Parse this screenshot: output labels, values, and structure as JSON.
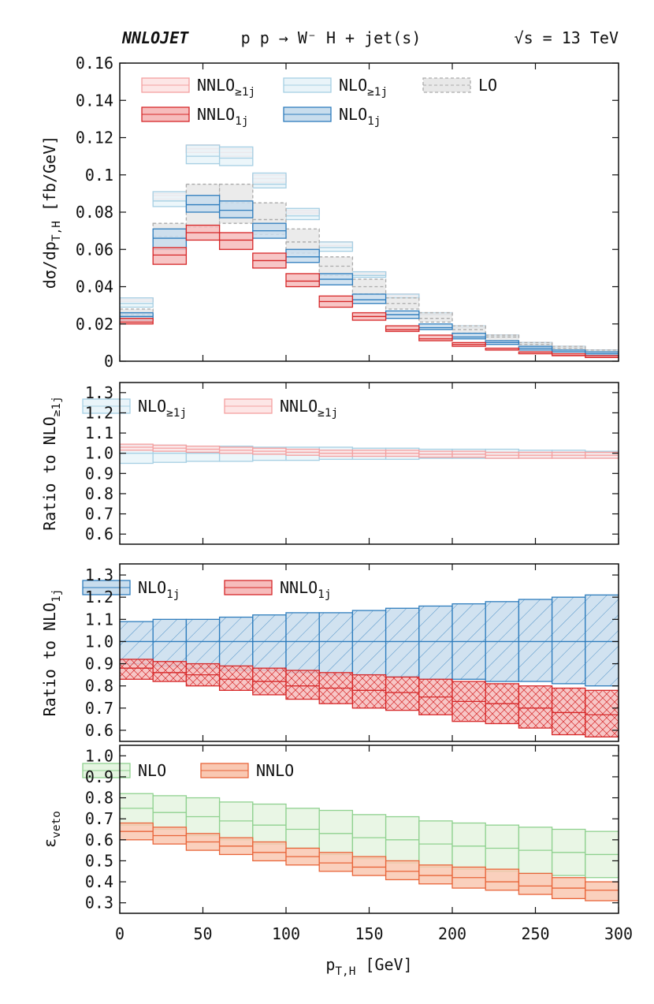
{
  "header": {
    "generator": "NNLOJET",
    "process": "p p → W⁻ H + jet(s)",
    "energy": "√s = 13 TeV"
  },
  "chart_data": [
    {
      "type": "band-histogram",
      "ylabel": [
        "dσ/dp",
        "T,H",
        " [fb/GeV]"
      ],
      "bins": [
        0,
        20,
        40,
        60,
        80,
        100,
        120,
        140,
        160,
        180,
        200,
        220,
        240,
        260,
        280,
        300
      ],
      "xlim": [
        0,
        300
      ],
      "xticks": [
        0,
        50,
        100,
        150,
        200,
        250,
        300
      ],
      "show_xticklabels": false,
      "ylim": [
        0,
        0.16
      ],
      "yticks": [
        0,
        0.02,
        0.04,
        0.06,
        0.08,
        0.1,
        0.12,
        0.14,
        0.16
      ],
      "series": [
        {
          "name": [
            "NNLO",
            "≥1j"
          ],
          "color": "#f4a0a0",
          "fill": "#fde6e6",
          "lower": [
            0.032,
            0.087,
            0.112,
            0.11,
            0.096,
            0.079,
            0.061,
            0.046,
            0.034,
            0.025,
            0.018,
            0.013,
            0.009,
            0.007,
            0.005
          ],
          "values": [
            0.033,
            0.089,
            0.114,
            0.112,
            0.098,
            0.08,
            0.062,
            0.047,
            0.035,
            0.025,
            0.018,
            0.013,
            0.01,
            0.007,
            0.005
          ],
          "upper": [
            0.034,
            0.09,
            0.116,
            0.114,
            0.1,
            0.081,
            0.064,
            0.048,
            0.036,
            0.026,
            0.019,
            0.014,
            0.01,
            0.008,
            0.006
          ]
        },
        {
          "name": [
            "NLO",
            "≥1j"
          ],
          "color": "#a6cfe3",
          "fill": "#e9f4f9",
          "lower": [
            0.029,
            0.083,
            0.106,
            0.105,
            0.093,
            0.076,
            0.059,
            0.045,
            0.034,
            0.025,
            0.018,
            0.013,
            0.009,
            0.007,
            0.005
          ],
          "values": [
            0.031,
            0.086,
            0.11,
            0.109,
            0.095,
            0.078,
            0.061,
            0.046,
            0.034,
            0.025,
            0.018,
            0.013,
            0.01,
            0.007,
            0.005
          ],
          "upper": [
            0.034,
            0.091,
            0.116,
            0.115,
            0.101,
            0.082,
            0.064,
            0.048,
            0.036,
            0.026,
            0.019,
            0.014,
            0.01,
            0.008,
            0.006
          ]
        },
        {
          "name": [
            "LO"
          ],
          "color": "#aaaaaa",
          "fill": "#e8e8e8",
          "dash": true,
          "lower": [
            0.022,
            0.06,
            0.072,
            0.074,
            0.068,
            0.058,
            0.046,
            0.036,
            0.028,
            0.021,
            0.015,
            0.011,
            0.008,
            0.006,
            0.004
          ],
          "values": [
            0.025,
            0.067,
            0.084,
            0.085,
            0.076,
            0.064,
            0.051,
            0.04,
            0.031,
            0.023,
            0.017,
            0.013,
            0.009,
            0.007,
            0.005
          ],
          "upper": [
            0.028,
            0.074,
            0.095,
            0.095,
            0.085,
            0.071,
            0.056,
            0.044,
            0.034,
            0.026,
            0.019,
            0.014,
            0.01,
            0.008,
            0.006
          ]
        },
        {
          "name": [
            "NLO",
            "1j"
          ],
          "color": "#2e7dbd",
          "fill": "#c9dded",
          "lower": [
            0.022,
            0.06,
            0.08,
            0.077,
            0.066,
            0.053,
            0.041,
            0.031,
            0.023,
            0.017,
            0.012,
            0.009,
            0.006,
            0.005,
            0.003
          ],
          "values": [
            0.024,
            0.066,
            0.084,
            0.081,
            0.07,
            0.056,
            0.044,
            0.033,
            0.025,
            0.018,
            0.013,
            0.01,
            0.007,
            0.005,
            0.004
          ],
          "upper": [
            0.026,
            0.071,
            0.089,
            0.086,
            0.074,
            0.06,
            0.047,
            0.036,
            0.027,
            0.02,
            0.015,
            0.011,
            0.008,
            0.006,
            0.005
          ]
        },
        {
          "name": [
            "NNLO",
            "1j"
          ],
          "color": "#d62728",
          "fill": "#f6bcbc",
          "lower": [
            0.02,
            0.052,
            0.065,
            0.06,
            0.05,
            0.04,
            0.029,
            0.022,
            0.016,
            0.011,
            0.008,
            0.006,
            0.004,
            0.003,
            0.002
          ],
          "values": [
            0.021,
            0.057,
            0.069,
            0.065,
            0.054,
            0.043,
            0.032,
            0.024,
            0.017,
            0.012,
            0.009,
            0.006,
            0.005,
            0.003,
            0.002
          ],
          "upper": [
            0.023,
            0.061,
            0.073,
            0.069,
            0.058,
            0.047,
            0.035,
            0.026,
            0.019,
            0.014,
            0.01,
            0.007,
            0.005,
            0.004,
            0.003
          ]
        }
      ]
    },
    {
      "type": "band-histogram",
      "ylabel": [
        "Ratio to NLO",
        "≥1j"
      ],
      "bins": [
        0,
        20,
        40,
        60,
        80,
        100,
        120,
        140,
        160,
        180,
        200,
        220,
        240,
        260,
        280,
        300
      ],
      "xlim": [
        0,
        300
      ],
      "xticks": [
        0,
        50,
        100,
        150,
        200,
        250,
        300
      ],
      "show_xticklabels": false,
      "ylim": [
        0.55,
        1.35
      ],
      "yticks": [
        0.6,
        0.7,
        0.8,
        0.9,
        {
          "value": 1,
          "label": "1.0"
        },
        1.1,
        1.2,
        1.3
      ],
      "series": [
        {
          "name": [
            "NLO",
            "≥1j"
          ],
          "color": "#a6cfe3",
          "fill": "#e9f4f9",
          "lower": [
            0.95,
            0.955,
            0.96,
            0.96,
            0.965,
            0.965,
            0.97,
            0.97,
            0.97,
            0.975,
            0.975,
            0.975,
            0.98,
            0.98,
            0.98
          ],
          "values": [
            1,
            1,
            1,
            1,
            1,
            1,
            1,
            1,
            1,
            1,
            1,
            1,
            1,
            1,
            1
          ],
          "upper": [
            1.04,
            1.04,
            1.035,
            1.035,
            1.03,
            1.03,
            1.03,
            1.025,
            1.025,
            1.02,
            1.02,
            1.02,
            1.015,
            1.015,
            1.01
          ]
        },
        {
          "name": [
            "NNLO",
            "≥1j"
          ],
          "color": "#f4a0a0",
          "fill": "#fde6e6",
          "lower": [
            1.015,
            1.01,
            1.005,
            1.0,
            0.995,
            0.99,
            0.985,
            0.985,
            0.985,
            0.98,
            0.98,
            0.975,
            0.975,
            0.975,
            0.975
          ],
          "values": [
            1.03,
            1.025,
            1.02,
            1.015,
            1.01,
            1.005,
            1.0,
            1.0,
            1.0,
            0.995,
            0.995,
            0.99,
            0.99,
            0.99,
            0.99
          ],
          "upper": [
            1.045,
            1.04,
            1.035,
            1.03,
            1.025,
            1.02,
            1.015,
            1.015,
            1.015,
            1.01,
            1.01,
            1.005,
            1.005,
            1.005,
            1.005
          ]
        }
      ]
    },
    {
      "type": "band-histogram",
      "ylabel": [
        "Ratio to NLO",
        "1j"
      ],
      "bins": [
        0,
        20,
        40,
        60,
        80,
        100,
        120,
        140,
        160,
        180,
        200,
        220,
        240,
        260,
        280,
        300
      ],
      "xlim": [
        0,
        300
      ],
      "xticks": [
        0,
        50,
        100,
        150,
        200,
        250,
        300
      ],
      "show_xticklabels": false,
      "ylim": [
        0.55,
        1.35
      ],
      "yticks": [
        0.6,
        0.7,
        0.8,
        0.9,
        {
          "value": 1,
          "label": "1.0"
        },
        1.1,
        1.2,
        1.3
      ],
      "series": [
        {
          "name": [
            "NLO",
            "1j"
          ],
          "color": "#2e7dbd",
          "fill": "#c9dded",
          "hatch": "diag",
          "lower": [
            0.9,
            0.89,
            0.88,
            0.87,
            0.87,
            0.86,
            0.85,
            0.85,
            0.84,
            0.83,
            0.83,
            0.82,
            0.82,
            0.81,
            0.8
          ],
          "values": [
            1,
            1,
            1,
            1,
            1,
            1,
            1,
            1,
            1,
            1,
            1,
            1,
            1,
            1,
            1
          ],
          "upper": [
            1.09,
            1.1,
            1.1,
            1.11,
            1.12,
            1.13,
            1.13,
            1.14,
            1.15,
            1.16,
            1.17,
            1.18,
            1.19,
            1.2,
            1.21
          ]
        },
        {
          "name": [
            "NNLO",
            "1j"
          ],
          "color": "#d62728",
          "fill": "#f6bcbc",
          "hatch": "cross",
          "lower": [
            0.83,
            0.82,
            0.8,
            0.78,
            0.76,
            0.74,
            0.72,
            0.7,
            0.69,
            0.67,
            0.64,
            0.63,
            0.61,
            0.58,
            0.57
          ],
          "values": [
            0.88,
            0.86,
            0.85,
            0.83,
            0.82,
            0.8,
            0.79,
            0.78,
            0.77,
            0.75,
            0.73,
            0.72,
            0.7,
            0.68,
            0.67
          ],
          "upper": [
            0.92,
            0.91,
            0.9,
            0.89,
            0.88,
            0.87,
            0.86,
            0.85,
            0.84,
            0.83,
            0.82,
            0.81,
            0.8,
            0.79,
            0.78
          ]
        }
      ]
    },
    {
      "type": "band-histogram",
      "ylabel": [
        "ε",
        "veto"
      ],
      "xlabel": [
        "p",
        "T,H",
        " [GeV]"
      ],
      "bins": [
        0,
        20,
        40,
        60,
        80,
        100,
        120,
        140,
        160,
        180,
        200,
        220,
        240,
        260,
        280,
        300
      ],
      "xlim": [
        0,
        300
      ],
      "xticks": [
        0,
        50,
        100,
        150,
        200,
        250,
        300
      ],
      "show_xticklabels": true,
      "ylim": [
        0.25,
        1.05
      ],
      "yticks": [
        0.3,
        0.4,
        0.5,
        0.6,
        0.7,
        0.8,
        0.9,
        {
          "value": 1,
          "label": "1.0"
        }
      ],
      "series": [
        {
          "name": [
            "NLO"
          ],
          "color": "#8fd18f",
          "fill": "#e5f5e1",
          "lower": [
            0.67,
            0.65,
            0.62,
            0.6,
            0.58,
            0.56,
            0.53,
            0.51,
            0.49,
            0.47,
            0.46,
            0.45,
            0.44,
            0.43,
            0.42
          ],
          "values": [
            0.75,
            0.73,
            0.71,
            0.69,
            0.67,
            0.65,
            0.63,
            0.61,
            0.6,
            0.58,
            0.57,
            0.56,
            0.55,
            0.54,
            0.53
          ],
          "upper": [
            0.82,
            0.81,
            0.8,
            0.78,
            0.77,
            0.75,
            0.74,
            0.72,
            0.71,
            0.69,
            0.68,
            0.67,
            0.66,
            0.65,
            0.64
          ]
        },
        {
          "name": [
            "NNLO"
          ],
          "color": "#e8653a",
          "fill": "#f9c8b2",
          "lower": [
            0.6,
            0.58,
            0.55,
            0.53,
            0.5,
            0.48,
            0.45,
            0.43,
            0.41,
            0.39,
            0.37,
            0.36,
            0.34,
            0.32,
            0.31
          ],
          "values": [
            0.64,
            0.62,
            0.59,
            0.57,
            0.54,
            0.52,
            0.49,
            0.47,
            0.45,
            0.43,
            0.42,
            0.4,
            0.38,
            0.37,
            0.36
          ],
          "upper": [
            0.68,
            0.66,
            0.63,
            0.61,
            0.59,
            0.56,
            0.54,
            0.52,
            0.5,
            0.48,
            0.47,
            0.46,
            0.44,
            0.42,
            0.4
          ]
        }
      ]
    }
  ]
}
